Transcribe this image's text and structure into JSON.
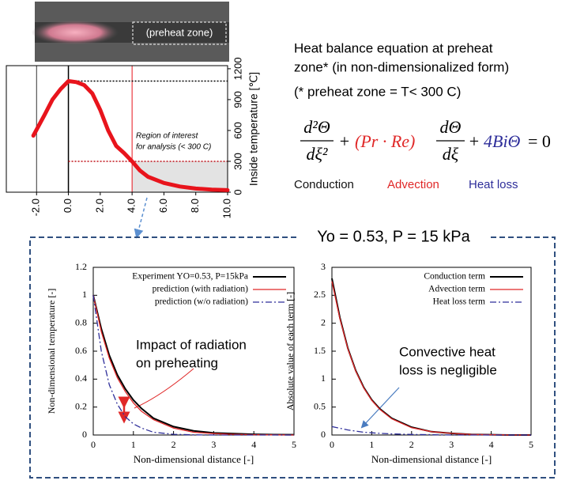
{
  "photo_label": "(preheat zone)",
  "header": {
    "lines": [
      "Heat balance equation at preheat",
      "zone* (in non-dimensionalized form)",
      "(* preheat zone = T< 300 C)"
    ],
    "equation": {
      "num1": "d²Θ",
      "den1": "dξ²",
      "plus1": "+",
      "advection": "(Pr · Re)",
      "num2": "dΘ",
      "den2": "dξ",
      "plus2": "+",
      "heatloss": "4BiΘ",
      "rhs": "= 0"
    },
    "terms": [
      {
        "label": "Conduction",
        "color": "#111111"
      },
      {
        "label": "Advection",
        "color": "#e02828"
      },
      {
        "label": "Heat loss",
        "color": "#2e2e9a"
      }
    ]
  },
  "panel": {
    "title": "Yo = 0.53, P = 15 kPa"
  },
  "chart_data": [
    {
      "type": "line",
      "y_label": "Inside temperature [℃]",
      "annotation": [
        "Region of interest",
        "for analysis (< 300 C)"
      ],
      "x": [
        -2.2,
        -1.5,
        -1,
        -0.5,
        0,
        0.5,
        1,
        1.5,
        2,
        2.5,
        3,
        3.5,
        4,
        4.5,
        5,
        6,
        7,
        8,
        9,
        10
      ],
      "values": [
        550,
        750,
        900,
        1000,
        1080,
        1070,
        1040,
        960,
        800,
        600,
        450,
        380,
        300,
        210,
        150,
        90,
        55,
        35,
        25,
        20
      ],
      "color": "#e8141c",
      "xlim": [
        -3.9,
        10
      ],
      "ylim": [
        0,
        1230
      ],
      "xticks": [
        {
          "value": -2,
          "label": "-2.0"
        },
        {
          "value": 0,
          "label": "0.0"
        },
        {
          "value": 2,
          "label": "2.0"
        },
        {
          "value": 4,
          "label": "4.0"
        },
        {
          "value": 6,
          "label": "6.0"
        },
        {
          "value": 8,
          "label": "8.0"
        },
        {
          "value": 10,
          "label": "10.0"
        }
      ],
      "yticks": [
        0,
        300,
        600,
        900,
        1200
      ],
      "vlines": [
        {
          "x": -2,
          "color": "#333333"
        },
        {
          "x": 0,
          "color": "#000000"
        },
        {
          "x": 4,
          "color": "#e8141c"
        }
      ],
      "hlines": [
        {
          "y": 1080,
          "color": "#000000"
        },
        {
          "y": 300,
          "color": "#c0141c"
        }
      ],
      "region": {
        "x": [
          4,
          10
        ],
        "y": [
          0,
          300
        ]
      }
    },
    {
      "type": "line",
      "x_label": "Non-dimensional distance [-]",
      "y_label": "Non-dimensional temperature [-]",
      "annotation": [
        "Impact of radiation",
        "on preheating"
      ],
      "x": [
        0,
        0.2,
        0.4,
        0.6,
        0.8,
        1,
        1.2,
        1.5,
        2,
        2.5,
        3,
        3.5,
        4,
        4.5,
        5
      ],
      "series": [
        {
          "name": "Experiment YO=0.53, P=15kPa",
          "color": "#000000",
          "dash": "solid",
          "values": [
            1,
            0.76,
            0.57,
            0.43,
            0.33,
            0.25,
            0.19,
            0.12,
            0.06,
            0.03,
            0.015,
            0.01,
            0.005,
            0.003,
            0.002
          ]
        },
        {
          "name": "prediction (with radiation)",
          "color": "#e02828",
          "dash": "solid",
          "values": [
            1,
            0.74,
            0.55,
            0.41,
            0.31,
            0.23,
            0.17,
            0.11,
            0.05,
            0.02,
            0.01,
            0.005,
            0.002,
            0.001,
            0
          ]
        },
        {
          "name": "prediction (w/o radiation)",
          "color": "#2e2e9a",
          "dash": "dashdot",
          "values": [
            1,
            0.6,
            0.36,
            0.22,
            0.13,
            0.08,
            0.05,
            0.02,
            0.005,
            0.001,
            0,
            0,
            0,
            0,
            0
          ]
        }
      ],
      "xlim": [
        0,
        5
      ],
      "ylim": [
        0,
        1.2
      ],
      "xticks": [
        0,
        1,
        2,
        3,
        4,
        5
      ],
      "yticks": [
        0,
        0.2,
        0.4,
        0.6,
        0.8,
        1,
        1.2
      ]
    },
    {
      "type": "line",
      "x_label": "Non-dimensional distance [-]",
      "y_label": "Absolute value of each term [-]",
      "annotation": [
        "Convective heat",
        "loss is negligible"
      ],
      "x": [
        0,
        0.2,
        0.4,
        0.6,
        0.8,
        1,
        1.2,
        1.5,
        2,
        2.5,
        3,
        3.5,
        4,
        4.5,
        5
      ],
      "series": [
        {
          "name": "Conduction term",
          "color": "#000000",
          "dash": "solid",
          "values": [
            2.8,
            2.1,
            1.55,
            1.15,
            0.85,
            0.63,
            0.47,
            0.3,
            0.14,
            0.06,
            0.03,
            0.01,
            0.005,
            0,
            0
          ]
        },
        {
          "name": "Advection term",
          "color": "#e02828",
          "dash": "solid",
          "values": [
            2.75,
            2.08,
            1.54,
            1.14,
            0.84,
            0.62,
            0.46,
            0.29,
            0.13,
            0.06,
            0.03,
            0.01,
            0.005,
            0,
            0
          ]
        },
        {
          "name": "Heat loss term",
          "color": "#2e2e9a",
          "dash": "dashdot",
          "values": [
            0.15,
            0.12,
            0.09,
            0.07,
            0.05,
            0.04,
            0.03,
            0.02,
            0.01,
            0.005,
            0,
            0,
            0,
            0,
            0
          ]
        }
      ],
      "xlim": [
        0,
        5
      ],
      "ylim": [
        0,
        3
      ],
      "xticks": [
        0,
        1,
        2,
        3,
        4,
        5
      ],
      "yticks": [
        0,
        0.5,
        1,
        1.5,
        2,
        2.5,
        3
      ]
    }
  ]
}
